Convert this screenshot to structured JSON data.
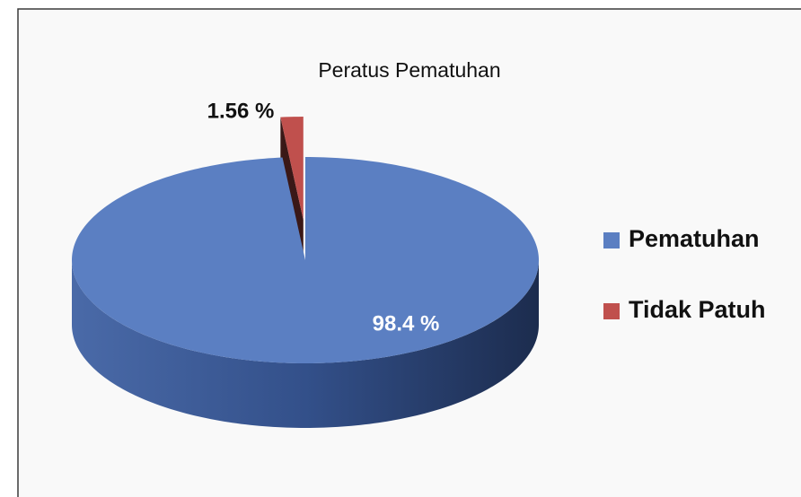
{
  "chart_data": {
    "type": "pie",
    "title": "Peratus Pematuhan",
    "categories": [
      "Pematuhan",
      "Tidak Patuh"
    ],
    "values": [
      98.4,
      1.56
    ],
    "value_labels": [
      "98.4 %",
      "1.56 %"
    ],
    "colors": [
      "#5b7fc2",
      "#c0504d"
    ],
    "legend": "right"
  }
}
